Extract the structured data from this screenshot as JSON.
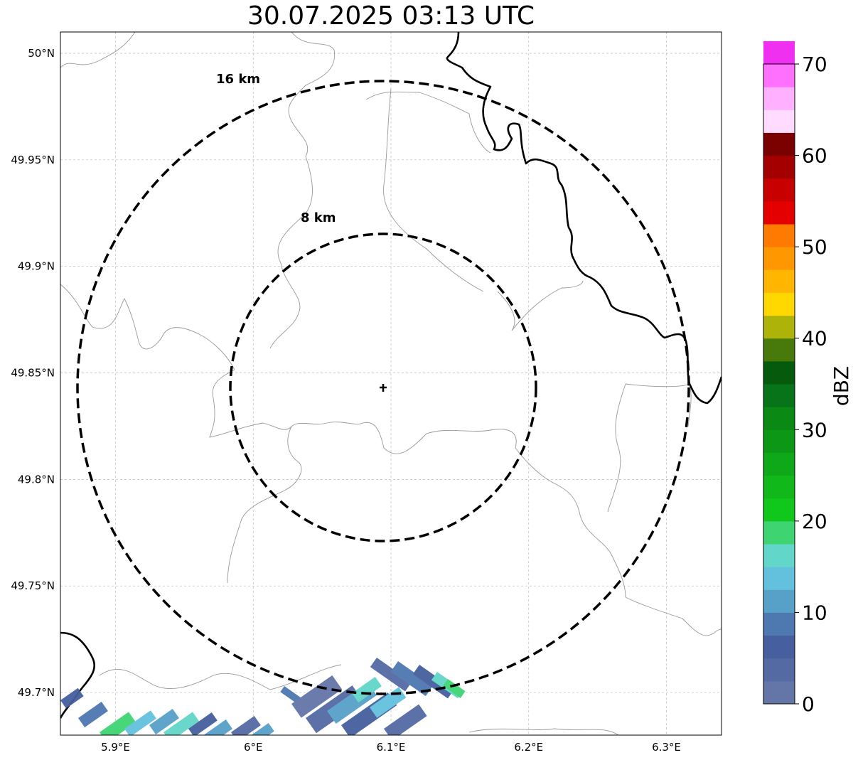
{
  "title": "30.07.2025 03:13 UTC",
  "map": {
    "lon_range": [
      5.86,
      6.34
    ],
    "lat_range": [
      49.68,
      50.01
    ],
    "lon_ticks": [
      {
        "value": 5.9,
        "label": "5.9°E"
      },
      {
        "value": 6.0,
        "label": "6°E"
      },
      {
        "value": 6.1,
        "label": "6.1°E"
      },
      {
        "value": 6.2,
        "label": "6.2°E"
      },
      {
        "value": 6.3,
        "label": "6.3°E"
      }
    ],
    "lat_ticks": [
      {
        "value": 50.0,
        "label": "50°N"
      },
      {
        "value": 49.95,
        "label": "49.95°N"
      },
      {
        "value": 49.9,
        "label": "49.9°N"
      },
      {
        "value": 49.85,
        "label": "49.85°N"
      },
      {
        "value": 49.8,
        "label": "49.8°N"
      },
      {
        "value": 49.75,
        "label": "49.75°N"
      },
      {
        "value": 49.7,
        "label": "49.7°N"
      }
    ],
    "radar_site": {
      "lon": 6.095,
      "lat": 49.843
    },
    "range_rings": [
      {
        "radius_km": 8,
        "label": "8 km"
      },
      {
        "radius_km": 16,
        "label": "16 km"
      }
    ]
  },
  "colorbar": {
    "label": "dBZ",
    "min": 0,
    "max": 70,
    "step": 2.5,
    "tick_labels": [
      "0",
      "10",
      "20",
      "30",
      "40",
      "50",
      "60",
      "70"
    ],
    "colors": [
      "#6475a8",
      "#546aa3",
      "#455f9f",
      "#4d78b0",
      "#57a0c8",
      "#63c1de",
      "#62d6c8",
      "#3ed472",
      "#10c81c",
      "#10b81a",
      "#0ea818",
      "#0c9816",
      "#0a8a14",
      "#08741a",
      "#055a0c",
      "#477a0a",
      "#aeb30a",
      "#ffd800",
      "#ffb600",
      "#ff9800",
      "#ff7a00",
      "#e50000",
      "#c80000",
      "#a50000",
      "#7b0000",
      "#ffdcff",
      "#ffb0ff",
      "#ff70ff",
      "#f030f0"
    ]
  }
}
